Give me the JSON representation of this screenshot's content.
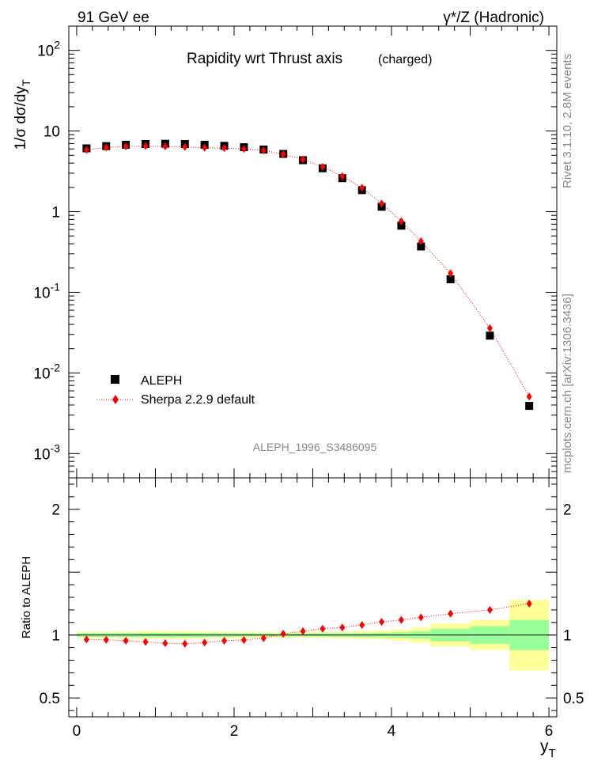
{
  "header": {
    "left": "91 GeV ee",
    "right": "γ*/Z (Hadronic)"
  },
  "side_labels": {
    "rivet": "Rivet 3.1.10,  2.8M events",
    "mcplots": "mcplots.cern.ch [arXiv:1306.3436]"
  },
  "chart_data": [
    {
      "type": "scatter",
      "panel": "main",
      "title": "Rapidity wrt Thrust axis",
      "subtitle": "(charged)",
      "ylabel": "1/σ dσ/dy_T",
      "yscale": "log",
      "xlim": [
        -0.1,
        6.1
      ],
      "ylim": [
        0.0005,
        200
      ],
      "ytick_labels": [
        "10^-3",
        "10^-2",
        "10^-1",
        "1",
        "10",
        "10^2"
      ],
      "watermark": "ALEPH_1996_S3486095",
      "legend": {
        "placement": "bottom-left",
        "entries": [
          "ALEPH",
          "Sherpa 2.2.9 default"
        ]
      },
      "x": [
        0.125,
        0.375,
        0.625,
        0.875,
        1.125,
        1.375,
        1.625,
        1.875,
        2.125,
        2.375,
        2.625,
        2.875,
        3.125,
        3.375,
        3.625,
        3.875,
        4.125,
        4.375,
        4.75,
        5.25,
        5.75
      ],
      "series": [
        {
          "name": "ALEPH",
          "color": "#000000",
          "marker": "square",
          "values": [
            6.1,
            6.5,
            6.75,
            6.9,
            6.95,
            6.9,
            6.75,
            6.55,
            6.3,
            5.9,
            5.2,
            4.35,
            3.45,
            2.6,
            1.85,
            1.15,
            0.67,
            0.37,
            0.145,
            0.029,
            0.0039
          ]
        },
        {
          "name": "Sherpa 2.2.9 default",
          "color": "#ff0000",
          "marker": "diamond",
          "values": [
            5.85,
            6.25,
            6.45,
            6.5,
            6.45,
            6.35,
            6.2,
            6.15,
            6.0,
            5.75,
            5.15,
            4.45,
            3.6,
            2.75,
            1.98,
            1.26,
            0.76,
            0.43,
            0.172,
            0.036,
            0.0051
          ]
        }
      ]
    },
    {
      "type": "scatter",
      "panel": "ratio",
      "ylabel": "Ratio to ALEPH",
      "xlabel": "y_T",
      "xlim": [
        -0.1,
        6.1
      ],
      "ylim": [
        0.35,
        2.25
      ],
      "xtick_labels": [
        "0",
        "2",
        "4",
        "6"
      ],
      "ytick_labels": [
        "0.5",
        "1",
        "2"
      ],
      "reference_line": 1,
      "bands": {
        "x_low": [
          0,
          0.25,
          0.5,
          0.75,
          1.0,
          1.25,
          1.5,
          1.75,
          2.0,
          2.25,
          2.5,
          2.75,
          3.0,
          3.25,
          3.5,
          3.75,
          4.0,
          4.25,
          4.5,
          5.0,
          5.5
        ],
        "x_high": [
          0.25,
          0.5,
          0.75,
          1.0,
          1.25,
          1.5,
          1.75,
          2.0,
          2.25,
          2.5,
          2.75,
          3.0,
          3.25,
          3.5,
          3.75,
          4.0,
          4.25,
          4.5,
          5.0,
          5.5,
          6.0
        ],
        "green_half_width": [
          0.015,
          0.015,
          0.016,
          0.017,
          0.017,
          0.017,
          0.016,
          0.015,
          0.013,
          0.012,
          0.012,
          0.012,
          0.013,
          0.014,
          0.016,
          0.018,
          0.022,
          0.028,
          0.05,
          0.07,
          0.12
        ],
        "yellow_half_width": [
          0.025,
          0.025,
          0.027,
          0.03,
          0.03,
          0.03,
          0.028,
          0.026,
          0.024,
          0.022,
          0.022,
          0.022,
          0.024,
          0.026,
          0.03,
          0.035,
          0.045,
          0.06,
          0.09,
          0.12,
          0.28
        ]
      },
      "x": [
        0.125,
        0.375,
        0.625,
        0.875,
        1.125,
        1.375,
        1.625,
        1.875,
        2.125,
        2.375,
        2.625,
        2.875,
        3.125,
        3.375,
        3.625,
        3.875,
        4.125,
        4.375,
        4.75,
        5.25,
        5.75
      ],
      "series": [
        {
          "name": "Sherpa 2.2.9 default",
          "color": "#ff0000",
          "marker": "diamond",
          "values": [
            0.965,
            0.962,
            0.955,
            0.945,
            0.935,
            0.93,
            0.94,
            0.955,
            0.96,
            0.975,
            1.01,
            1.03,
            1.05,
            1.06,
            1.08,
            1.105,
            1.12,
            1.14,
            1.17,
            1.2,
            1.25
          ]
        }
      ]
    }
  ]
}
